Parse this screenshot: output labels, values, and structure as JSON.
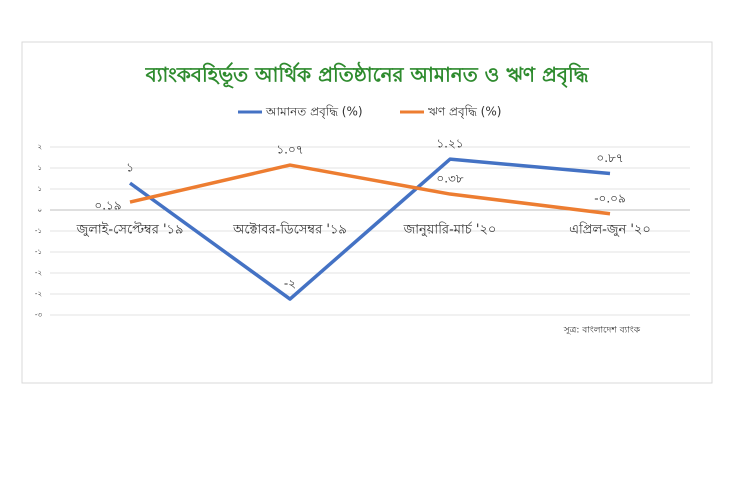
{
  "chart_data": {
    "type": "line",
    "title": "ব্যাংকবহির্ভূত আর্থিক প্রতিষ্ঠানের  আমানত ও ঋণ প্রবৃদ্ধি",
    "categories": [
      "জুলাই-সেপ্টেম্বর '১৯",
      "অক্টোবর-ডিসেম্বর '১৯",
      "জানুয়ারি-মার্চ '২০",
      "এপ্রিল-জুন '২০"
    ],
    "series": [
      {
        "name": "আমানত প্রবৃদ্ধি (%)",
        "color": "#4472c4",
        "values": [
          0.64,
          -2.12,
          1.21,
          0.87
        ],
        "value_labels": [
          "১",
          "-২",
          "১.২১",
          "০.৮৭"
        ]
      },
      {
        "name": "ঋণ প্রবৃদ্ধি (%)",
        "color": "#ed7d31",
        "values": [
          0.19,
          1.07,
          0.38,
          -0.09
        ],
        "value_labels": [
          "০.১৯",
          "১.০৭",
          "০.৩৮",
          "-০.০৯"
        ]
      }
    ],
    "ylim": [
      -3.5,
      2
    ],
    "yticks": [
      {
        "value": 1.5,
        "label": "২"
      },
      {
        "value": 1,
        "label": "১"
      },
      {
        "value": 0.5,
        "label": "১"
      },
      {
        "value": 0,
        "label": "০"
      },
      {
        "value": -0.5,
        "label": "-১"
      },
      {
        "value": -1,
        "label": "-১"
      },
      {
        "value": -1.5,
        "label": "-২"
      },
      {
        "value": -2,
        "label": "-২"
      },
      {
        "value": -2.5,
        "label": "-৩"
      }
    ],
    "grid": true,
    "legend": "top",
    "source": "সূত্র: বাংলাদেশ ব্যাংক"
  }
}
